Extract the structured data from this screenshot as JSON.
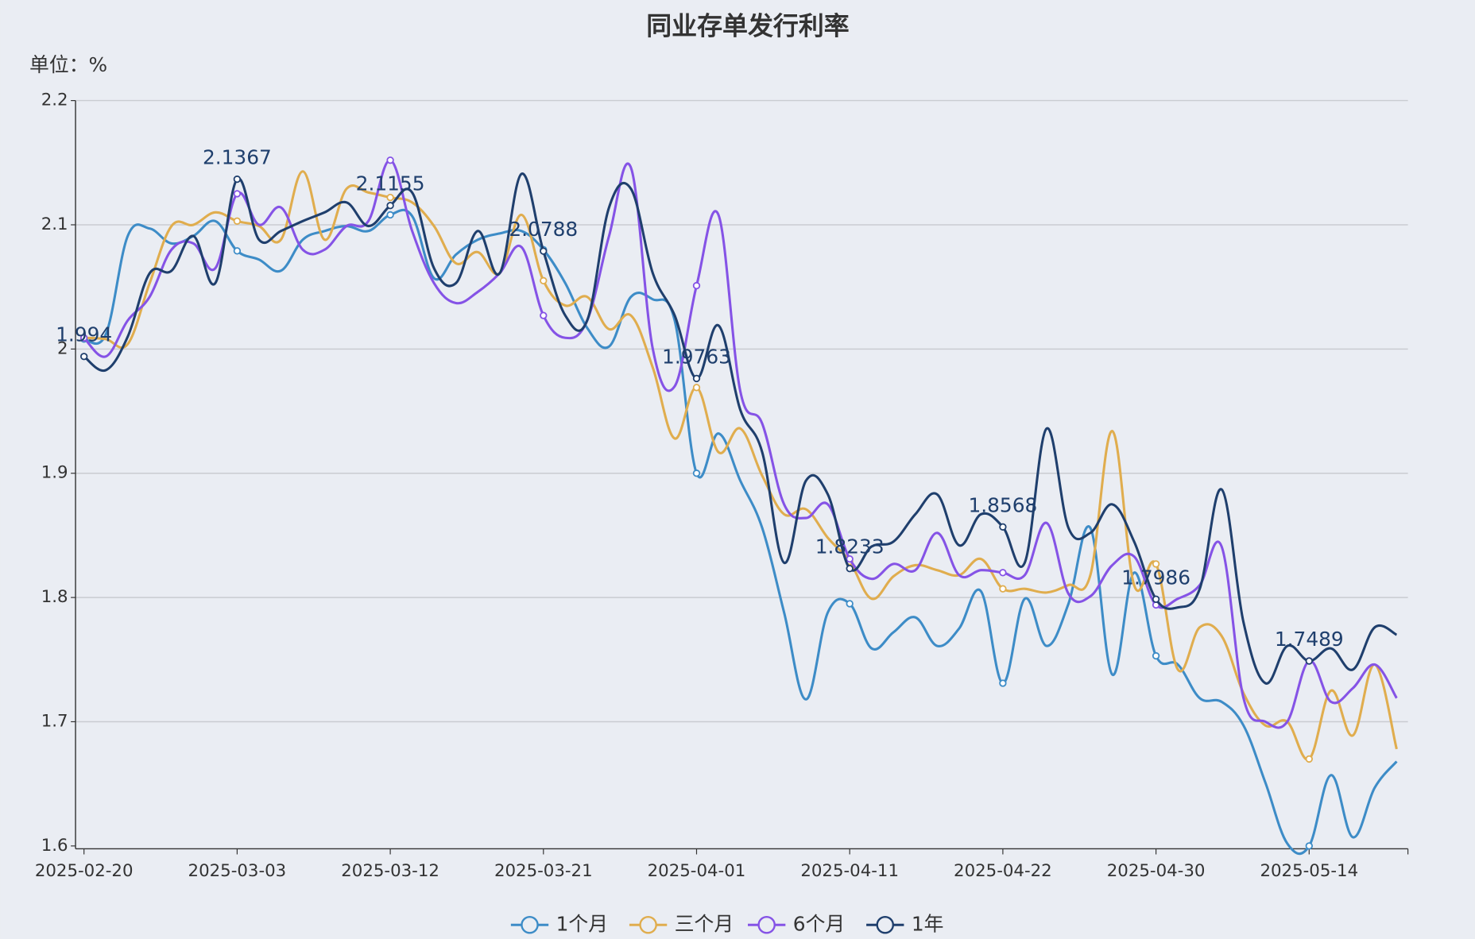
{
  "chart_data": {
    "type": "line",
    "title": "同业存单发行利率",
    "unit_label": "单位：%",
    "categories": [
      "2025-02-20",
      null,
      null,
      null,
      null,
      null,
      null,
      "2025-03-03",
      null,
      null,
      null,
      null,
      null,
      null,
      "2025-03-12",
      null,
      null,
      null,
      null,
      null,
      null,
      "2025-03-21",
      null,
      null,
      null,
      null,
      null,
      null,
      "2025-04-01",
      null,
      null,
      null,
      null,
      null,
      null,
      "2025-04-11",
      null,
      null,
      null,
      null,
      null,
      null,
      "2025-04-22",
      null,
      null,
      null,
      null,
      null,
      null,
      "2025-04-30",
      null,
      null,
      null,
      null,
      null,
      null,
      "2025-05-14",
      null,
      null,
      null,
      null
    ],
    "ylim": [
      1.6,
      2.2
    ],
    "yticks": [
      1.6,
      1.7,
      1.8,
      1.9,
      2,
      2.1,
      2.2
    ],
    "grid": true,
    "smooth": true,
    "legend": "bottom",
    "series": [
      {
        "name": "1个月",
        "color": "#3d8cc7",
        "values": [
          2.008,
          2.012,
          2.091,
          2.097,
          2.085,
          2.091,
          2.103,
          2.079,
          2.072,
          2.063,
          2.088,
          2.095,
          2.099,
          2.095,
          2.108,
          2.107,
          2.057,
          2.076,
          2.088,
          2.093,
          2.095,
          2.08,
          2.053,
          2.017,
          2.002,
          2.042,
          2.04,
          2.023,
          1.9,
          1.932,
          1.894,
          1.856,
          1.788,
          1.718,
          1.788,
          1.795,
          1.759,
          1.772,
          1.784,
          1.761,
          1.775,
          1.805,
          1.731,
          1.799,
          1.761,
          1.795,
          1.856,
          1.738,
          1.82,
          1.753,
          1.746,
          1.719,
          1.716,
          1.697,
          1.651,
          1.602,
          1.6,
          1.657,
          1.607,
          1.647,
          1.668
        ]
      },
      {
        "name": "三个月",
        "color": "#e0ad4e",
        "values": [
          2.009,
          2.008,
          2.004,
          2.053,
          2.099,
          2.1,
          2.11,
          2.103,
          2.099,
          2.088,
          2.143,
          2.088,
          2.129,
          2.126,
          2.122,
          2.118,
          2.099,
          2.069,
          2.078,
          2.061,
          2.108,
          2.055,
          2.035,
          2.042,
          2.016,
          2.027,
          1.985,
          1.928,
          1.969,
          1.917,
          1.936,
          1.898,
          1.867,
          1.871,
          1.848,
          1.829,
          1.799,
          1.817,
          1.826,
          1.822,
          1.818,
          1.831,
          1.807,
          1.807,
          1.804,
          1.81,
          1.818,
          1.934,
          1.81,
          1.827,
          1.742,
          1.776,
          1.769,
          1.723,
          1.697,
          1.7,
          1.67,
          1.725,
          1.689,
          1.746,
          1.678
        ]
      },
      {
        "name": "6个月",
        "color": "#8553e6",
        "values": [
          2.009,
          1.994,
          2.023,
          2.042,
          2.08,
          2.085,
          2.065,
          2.125,
          2.1,
          2.114,
          2.08,
          2.08,
          2.099,
          2.103,
          2.152,
          2.095,
          2.053,
          2.037,
          2.046,
          2.061,
          2.082,
          2.027,
          2.009,
          2.023,
          2.091,
          2.146,
          2.0,
          1.97,
          2.051,
          2.108,
          1.966,
          1.94,
          1.875,
          1.864,
          1.875,
          1.831,
          1.815,
          1.827,
          1.822,
          1.852,
          1.818,
          1.822,
          1.82,
          1.818,
          1.86,
          1.803,
          1.801,
          1.826,
          1.833,
          1.794,
          1.799,
          1.81,
          1.841,
          1.719,
          1.7,
          1.7,
          1.749,
          1.716,
          1.727,
          1.746,
          1.719
        ]
      },
      {
        "name": "1年",
        "color": "#1f3f6d",
        "labels": true,
        "values": [
          1.994,
          1.983,
          2.01,
          2.061,
          2.063,
          2.091,
          2.053,
          2.1367,
          2.088,
          2.095,
          2.103,
          2.11,
          2.118,
          2.099,
          2.1155,
          2.126,
          2.065,
          2.053,
          2.095,
          2.061,
          2.141,
          2.0788,
          2.027,
          2.023,
          2.114,
          2.129,
          2.061,
          2.027,
          1.9763,
          2.019,
          1.951,
          1.917,
          1.828,
          1.894,
          1.883,
          1.8233,
          1.841,
          1.845,
          1.867,
          1.883,
          1.842,
          1.867,
          1.8568,
          1.828,
          1.936,
          1.856,
          1.852,
          1.875,
          1.845,
          1.7986,
          1.792,
          1.807,
          1.887,
          1.78,
          1.731,
          1.761,
          1.7489,
          1.759,
          1.742,
          1.776,
          1.77
        ]
      }
    ]
  }
}
